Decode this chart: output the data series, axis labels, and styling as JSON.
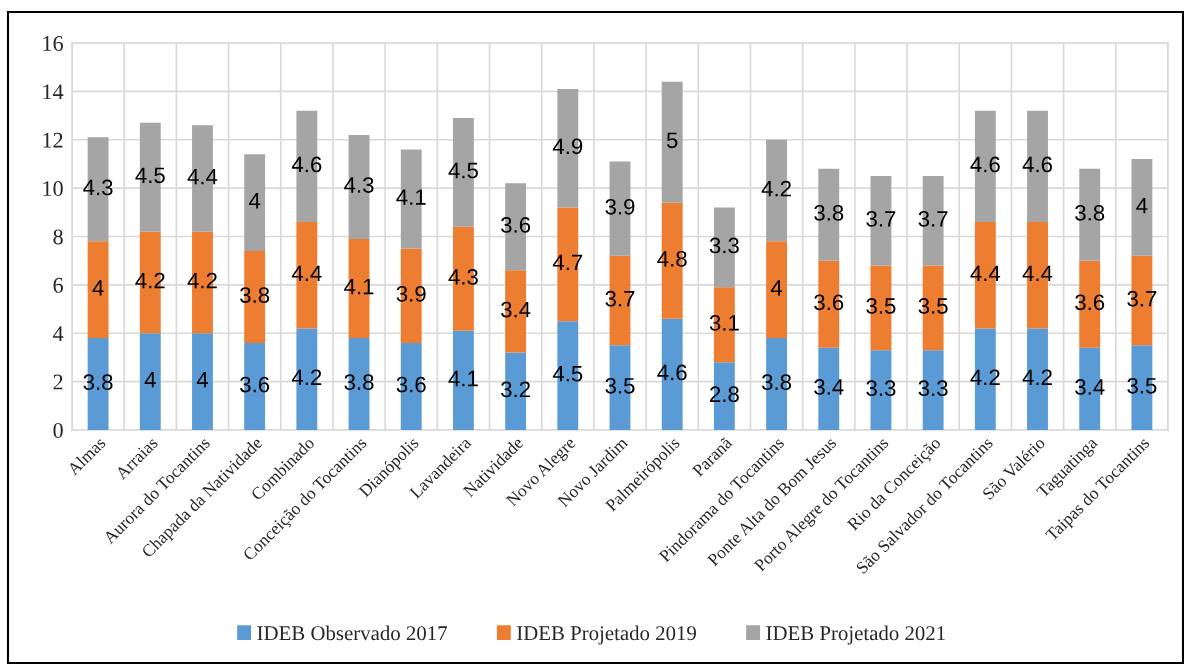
{
  "chart_data": {
    "type": "bar",
    "stacked": true,
    "categories": [
      "Almas",
      "Arraias",
      "Aurora do Tocantins",
      "Chapada da Natividade",
      "Combinado",
      "Conceição do Tocantins",
      "Dianópolis",
      "Lavandeira",
      "Natividade",
      "Novo Alegre",
      "Novo Jardim",
      "Palmeirópolis",
      "Paranã",
      "Pindorama do Tocantins",
      "Ponte Alta do Bom Jesus",
      "Porto Alegre do Tocantins",
      "Rio da Conceição",
      "São Salvador do Tocantins",
      "São Valério",
      "Taguatinga",
      "Taipas do Tocantins"
    ],
    "series": [
      {
        "name": "IDEB Observado 2017",
        "color": "#5b9bd5",
        "values": [
          3.8,
          4,
          4,
          3.6,
          4.2,
          3.8,
          3.6,
          4.1,
          3.2,
          4.5,
          3.5,
          4.6,
          2.8,
          3.8,
          3.4,
          3.3,
          3.3,
          4.2,
          4.2,
          3.4,
          3.5
        ]
      },
      {
        "name": "IDEB Projetado 2019",
        "color": "#ed7d31",
        "values": [
          4,
          4.2,
          4.2,
          3.8,
          4.4,
          4.1,
          3.9,
          4.3,
          3.4,
          4.7,
          3.7,
          4.8,
          3.1,
          4,
          3.6,
          3.5,
          3.5,
          4.4,
          4.4,
          3.6,
          3.7
        ]
      },
      {
        "name": "IDEB Projetado 2021",
        "color": "#a5a5a5",
        "values": [
          4.3,
          4.5,
          4.4,
          4,
          4.6,
          4.3,
          4.1,
          4.5,
          3.6,
          4.9,
          3.9,
          5,
          3.3,
          4.2,
          3.8,
          3.7,
          3.7,
          4.6,
          4.6,
          3.8,
          4
        ]
      }
    ],
    "ylim": [
      0,
      16
    ],
    "yticks": [
      0,
      2,
      4,
      6,
      8,
      10,
      12,
      14,
      16
    ],
    "grid": true,
    "legend": "bottom",
    "data_labels": true
  }
}
